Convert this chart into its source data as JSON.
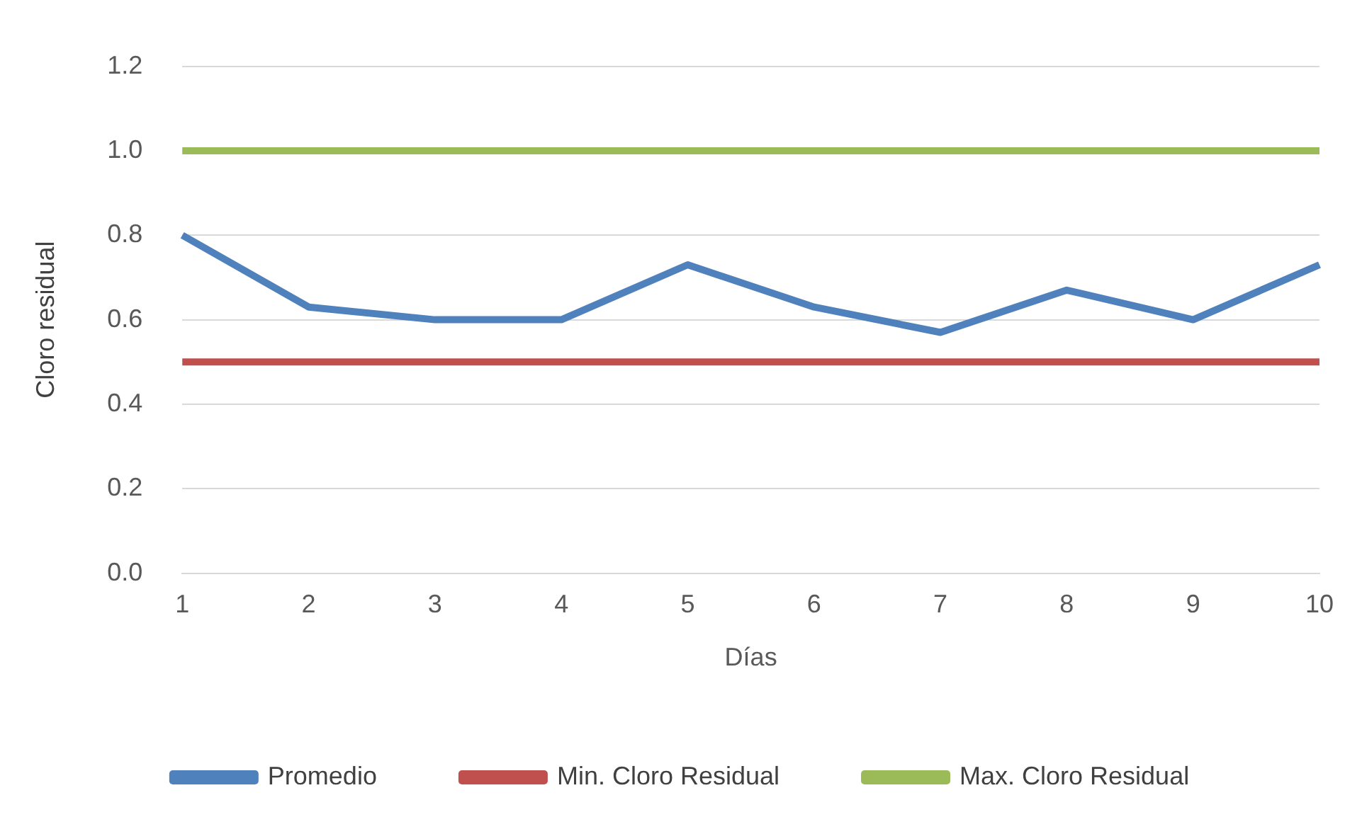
{
  "chart_data": {
    "type": "line",
    "xlabel": "Días",
    "ylabel": "Cloro residual",
    "categories": [
      "1",
      "2",
      "3",
      "4",
      "5",
      "6",
      "7",
      "8",
      "9",
      "10"
    ],
    "series": [
      {
        "name": "Promedio",
        "color": "#4f81bd",
        "values": [
          0.8,
          0.63,
          0.6,
          0.6,
          0.73,
          0.63,
          0.57,
          0.67,
          0.6,
          0.73
        ]
      },
      {
        "name": "Min. Cloro Residual",
        "color": "#c0504d",
        "values": [
          0.5,
          0.5,
          0.5,
          0.5,
          0.5,
          0.5,
          0.5,
          0.5,
          0.5,
          0.5
        ]
      },
      {
        "name": "Max. Cloro Residual",
        "color": "#9bbb59",
        "values": [
          1.0,
          1.0,
          1.0,
          1.0,
          1.0,
          1.0,
          1.0,
          1.0,
          1.0,
          1.0
        ]
      }
    ],
    "ylim": [
      0,
      1.2
    ],
    "yticks": [
      {
        "value": 0,
        "label": "0.0"
      },
      {
        "value": 0.2,
        "label": "0.2"
      },
      {
        "value": 0.4,
        "label": "0.4"
      },
      {
        "value": 0.6,
        "label": "0.6"
      },
      {
        "value": 0.8,
        "label": "0.8"
      },
      {
        "value": 1.0,
        "label": "1.0"
      },
      {
        "value": 1.2,
        "label": "1.2"
      }
    ],
    "grid": "y",
    "legend": "bottom",
    "marker": "none",
    "line_style": "solid"
  }
}
